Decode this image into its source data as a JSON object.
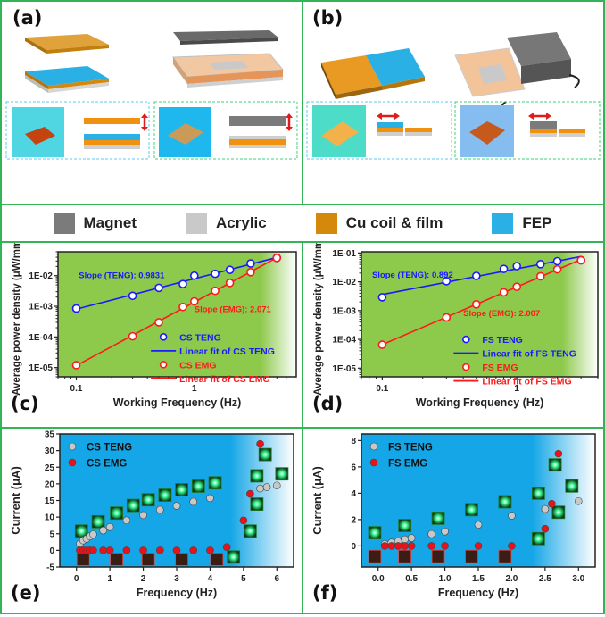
{
  "panels": {
    "a": "(a)",
    "b": "(b)",
    "c": "(c)",
    "d": "(d)",
    "e": "(e)",
    "f": "(f)"
  },
  "material_legend": [
    {
      "label": "Magnet",
      "color": "#7b7b7b"
    },
    {
      "label": "Acrylic",
      "color": "#c9c9c9"
    },
    {
      "label": "Cu coil & film",
      "color": "#d4890c"
    },
    {
      "label": "FEP",
      "color": "#2bb0e6"
    }
  ],
  "colors": {
    "teng": "#1a1aff",
    "emg": "#ff1a1a",
    "green_bg": "#8dc94b",
    "blue_bg": "#14a6e6",
    "border": "#33b557"
  },
  "chart_data": [
    {
      "id": "c",
      "type": "scatter",
      "xscale": "log",
      "yscale": "log",
      "xlabel": "Working Frequency (Hz)",
      "ylabel": "Average power density (μW/mm³)",
      "xlim": [
        0.07,
        7.3
      ],
      "ylim": [
        5e-06,
        0.06
      ],
      "xticks": [
        0.1,
        1
      ],
      "xticklabels": [
        "0.1",
        "1"
      ],
      "yticks": [
        1e-05,
        0.0001,
        0.001,
        0.01
      ],
      "yticklabels": [
        "1E-05",
        "1E-04",
        "1E-03",
        "1E-02"
      ],
      "series": [
        {
          "name": "CS TENG",
          "fit_name": "Linear fit of CS TENG",
          "color": "#1a1aff",
          "x": [
            0.1,
            0.3,
            0.5,
            0.8,
            1,
            1.5,
            2,
            3,
            5
          ],
          "y": [
            0.00085,
            0.0022,
            0.004,
            0.0053,
            0.01,
            0.0115,
            0.0155,
            0.025,
            0.038
          ]
        },
        {
          "name": "CS EMG",
          "fit_name": "Linear fit of CS EMG",
          "color": "#ff1a1a",
          "x": [
            0.1,
            0.3,
            0.5,
            0.8,
            1,
            1.5,
            2,
            3,
            5
          ],
          "y": [
            1.2e-05,
            0.000105,
            0.0003,
            0.00095,
            0.00145,
            0.0032,
            0.0058,
            0.013,
            0.038
          ]
        }
      ],
      "annotations": [
        "Slope (TENG): 0.9831",
        "Slope (EMG): 2.071"
      ],
      "legend": "bottom-right",
      "grid": false
    },
    {
      "id": "d",
      "type": "scatter",
      "xscale": "log",
      "yscale": "log",
      "xlabel": "Working Frequency (Hz)",
      "ylabel": "Average power density (μW/mm³)",
      "xlim": [
        0.07,
        4.0
      ],
      "ylim": [
        5e-06,
        0.11
      ],
      "xticks": [
        0.1,
        1
      ],
      "xticklabels": [
        "0.1",
        "1"
      ],
      "yticks": [
        1e-05,
        0.0001,
        0.001,
        0.01,
        0.1
      ],
      "yticklabels": [
        "1E-05",
        "1E-04",
        "1E-03",
        "1E-02",
        "1E-01"
      ],
      "series": [
        {
          "name": "FS TENG",
          "fit_name": "Linear fit of FS TENG",
          "color": "#1a1aff",
          "x": [
            0.1,
            0.3,
            0.5,
            0.8,
            1,
            1.5,
            2,
            3
          ],
          "y": [
            0.0029,
            0.0105,
            0.016,
            0.028,
            0.035,
            0.041,
            0.052,
            0.056
          ]
        },
        {
          "name": "FS EMG",
          "fit_name": "Linear fit of FS EMG",
          "color": "#ff1a1a",
          "x": [
            0.1,
            0.3,
            0.5,
            0.8,
            1,
            1.5,
            2,
            3
          ],
          "y": [
            6.5e-05,
            0.00058,
            0.00165,
            0.0043,
            0.0067,
            0.0155,
            0.027,
            0.056
          ]
        }
      ],
      "annotations": [
        "Slope (TENG): 0.892",
        "Slope (EMG): 2.007"
      ],
      "legend": "bottom-right",
      "grid": false
    },
    {
      "id": "e",
      "type": "scatter",
      "xlabel": "Frequency (Hz)",
      "ylabel": "Current (μA)",
      "xlim": [
        -0.5,
        6.5
      ],
      "ylim": [
        -5,
        35
      ],
      "xticks": [
        0,
        1,
        2,
        3,
        4,
        5,
        6
      ],
      "xticklabels": [
        "0",
        "1",
        "2",
        "3",
        "4",
        "5",
        "6"
      ],
      "yticks": [
        -5,
        0,
        5,
        10,
        15,
        20,
        25,
        30,
        35
      ],
      "yticklabels": [
        "-5",
        "0",
        "5",
        "10",
        "15",
        "20",
        "25",
        "30",
        "35"
      ],
      "series": [
        {
          "name": "CS TENG",
          "color": "#c8c8c8",
          "x": [
            0.1,
            0.2,
            0.3,
            0.4,
            0.5,
            0.8,
            1,
            1.5,
            2,
            2.5,
            3,
            3.5,
            4,
            5.5,
            5.7,
            6
          ],
          "y": [
            2,
            3,
            3.5,
            4.2,
            4.8,
            6,
            7,
            9,
            10.6,
            12.2,
            13.4,
            14.6,
            15.7,
            18.6,
            19,
            19.5
          ]
        },
        {
          "name": "CS EMG",
          "color": "#e8121a",
          "x": [
            0.1,
            0.2,
            0.3,
            0.4,
            0.5,
            0.8,
            1,
            1.5,
            2,
            2.5,
            3,
            3.5,
            4,
            4.5,
            5,
            5.2,
            5.5
          ],
          "y": [
            0,
            0,
            0,
            0,
            0,
            0,
            0,
            0,
            0,
            0,
            0,
            0,
            0,
            1,
            9,
            17,
            32
          ]
        }
      ],
      "legend": "top-left",
      "grid": false
    },
    {
      "id": "f",
      "type": "scatter",
      "xlabel": "Frequency (Hz)",
      "ylabel": "Current (μA)",
      "xlim": [
        -0.25,
        3.25
      ],
      "ylim": [
        -1.6,
        8.5
      ],
      "xticks": [
        0,
        0.5,
        1,
        1.5,
        2,
        2.5,
        3
      ],
      "xticklabels": [
        "0.0",
        "0.5",
        "1.0",
        "1.5",
        "2.0",
        "2.5",
        "3.0"
      ],
      "yticks": [
        0,
        2,
        4,
        6,
        8
      ],
      "yticklabels": [
        "0",
        "2",
        "4",
        "6",
        "8"
      ],
      "series": [
        {
          "name": "FS TENG",
          "color": "#c8c8c8",
          "x": [
            0.1,
            0.2,
            0.3,
            0.4,
            0.5,
            0.8,
            1,
            1.5,
            2,
            2.5,
            3
          ],
          "y": [
            0.15,
            0.25,
            0.35,
            0.5,
            0.6,
            0.9,
            1.1,
            1.6,
            2.3,
            2.8,
            3.4
          ]
        },
        {
          "name": "FS EMG",
          "color": "#e8121a",
          "x": [
            0.1,
            0.2,
            0.3,
            0.4,
            0.5,
            0.8,
            1,
            1.5,
            2,
            2.5,
            2.6,
            2.7
          ],
          "y": [
            0,
            0,
            0,
            0,
            0,
            0,
            0,
            0,
            0,
            1.3,
            3.2,
            7
          ]
        }
      ],
      "legend": "top-left",
      "grid": false
    }
  ]
}
